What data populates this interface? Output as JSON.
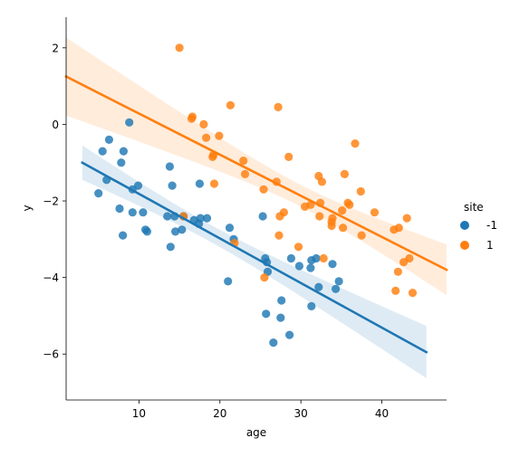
{
  "chart_data": {
    "type": "scatter",
    "xlabel": "age",
    "ylabel": "y",
    "xlim": [
      1,
      48
    ],
    "ylim": [
      -7.2,
      2.8
    ],
    "xticks": [
      10,
      20,
      30,
      40
    ],
    "yticks": [
      2,
      0,
      -2,
      -4,
      -6
    ],
    "xtick_labels": [
      "10",
      "20",
      "30",
      "40"
    ],
    "ytick_labels": [
      "2",
      "0",
      "−2",
      "−4",
      "−6"
    ],
    "grid": false,
    "legend": {
      "title": "site",
      "placement": "right"
    },
    "series": [
      {
        "name": "-1",
        "color": "#1f77b4",
        "points": [
          [
            5,
            -1.8
          ],
          [
            5.5,
            -0.7
          ],
          [
            6,
            -1.45
          ],
          [
            6.3,
            -0.4
          ],
          [
            7.6,
            -2.2
          ],
          [
            7.8,
            -1.0
          ],
          [
            8,
            -2.9
          ],
          [
            8.1,
            -0.7
          ],
          [
            8.8,
            0.05
          ],
          [
            9.2,
            -1.7
          ],
          [
            9.2,
            -2.3
          ],
          [
            9.9,
            -1.6
          ],
          [
            10.5,
            -2.3
          ],
          [
            10.8,
            -2.75
          ],
          [
            11,
            -2.8
          ],
          [
            13.5,
            -2.4
          ],
          [
            13.8,
            -1.1
          ],
          [
            13.9,
            -3.2
          ],
          [
            14.1,
            -1.6
          ],
          [
            14.4,
            -2.4
          ],
          [
            14.5,
            -2.8
          ],
          [
            15.3,
            -2.75
          ],
          [
            15.5,
            -2.4
          ],
          [
            16.8,
            -2.5
          ],
          [
            17.4,
            -2.6
          ],
          [
            17.5,
            -1.55
          ],
          [
            17.6,
            -2.45
          ],
          [
            18.4,
            -2.45
          ],
          [
            21,
            -4.1
          ],
          [
            21.2,
            -2.7
          ],
          [
            21.7,
            -3.0
          ],
          [
            25.3,
            -2.4
          ],
          [
            25.6,
            -3.5
          ],
          [
            25.7,
            -4.95
          ],
          [
            25.8,
            -3.6
          ],
          [
            25.9,
            -3.85
          ],
          [
            26.6,
            -5.7
          ],
          [
            27.5,
            -5.05
          ],
          [
            27.6,
            -4.6
          ],
          [
            28.6,
            -5.5
          ],
          [
            28.8,
            -3.5
          ],
          [
            29.8,
            -3.7
          ],
          [
            31.2,
            -3.75
          ],
          [
            31.3,
            -3.55
          ],
          [
            31.3,
            -4.75
          ],
          [
            31.9,
            -3.5
          ],
          [
            32.2,
            -4.25
          ],
          [
            33.9,
            -3.65
          ],
          [
            34.3,
            -4.3
          ],
          [
            34.7,
            -4.1
          ]
        ],
        "fit": {
          "x": [
            3,
            45.5
          ],
          "y": [
            -1.0,
            -5.95
          ]
        }
      },
      {
        "name": "1",
        "color": "#ff7f0e",
        "points": [
          [
            15,
            2.0
          ],
          [
            15.5,
            -2.4
          ],
          [
            16.5,
            0.15
          ],
          [
            16.6,
            0.2
          ],
          [
            18,
            0.0
          ],
          [
            18.3,
            -0.35
          ],
          [
            19.1,
            -0.85
          ],
          [
            19.2,
            -0.8
          ],
          [
            19.3,
            -1.55
          ],
          [
            19.9,
            -0.3
          ],
          [
            21.3,
            0.5
          ],
          [
            21.8,
            -3.1
          ],
          [
            22.9,
            -0.95
          ],
          [
            23.1,
            -1.3
          ],
          [
            25.4,
            -1.7
          ],
          [
            25.5,
            -4.0
          ],
          [
            27,
            -1.5
          ],
          [
            27.2,
            0.45
          ],
          [
            27.3,
            -2.9
          ],
          [
            27.4,
            -2.4
          ],
          [
            27.9,
            -2.3
          ],
          [
            28.5,
            -0.85
          ],
          [
            29.7,
            -3.2
          ],
          [
            30.5,
            -2.15
          ],
          [
            31.2,
            -2.1
          ],
          [
            32.2,
            -1.35
          ],
          [
            32.3,
            -2.4
          ],
          [
            32.4,
            -2.05
          ],
          [
            32.6,
            -1.5
          ],
          [
            32.8,
            -3.5
          ],
          [
            33.8,
            -2.55
          ],
          [
            33.8,
            -2.65
          ],
          [
            33.9,
            -2.45
          ],
          [
            35.1,
            -2.25
          ],
          [
            35.2,
            -2.7
          ],
          [
            35.4,
            -1.3
          ],
          [
            35.8,
            -2.05
          ],
          [
            36,
            -2.1
          ],
          [
            36.7,
            -0.5
          ],
          [
            37.4,
            -1.75
          ],
          [
            37.5,
            -2.9
          ],
          [
            39.1,
            -2.3
          ],
          [
            41.5,
            -2.75
          ],
          [
            41.7,
            -4.35
          ],
          [
            42,
            -3.85
          ],
          [
            42.1,
            -2.7
          ],
          [
            42.7,
            -3.6
          ],
          [
            43.1,
            -2.45
          ],
          [
            43.4,
            -3.5
          ],
          [
            43.8,
            -4.4
          ]
        ],
        "fit": {
          "x": [
            1,
            48
          ],
          "y": [
            1.25,
            -3.8
          ]
        }
      }
    ]
  }
}
